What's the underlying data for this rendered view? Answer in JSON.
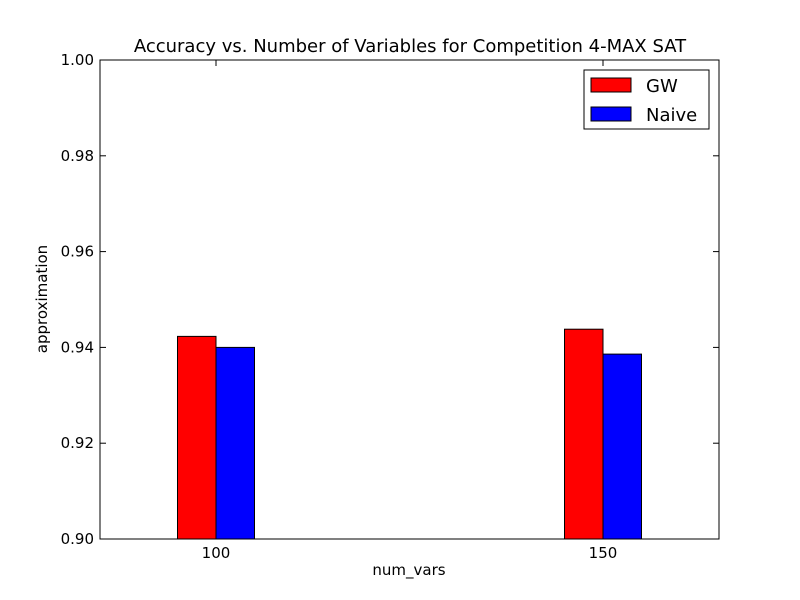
{
  "chart_data": {
    "type": "bar",
    "title": "Accuracy vs. Number of Variables for Competition 4-MAX SAT",
    "xlabel": "num_vars",
    "ylabel": "approximation",
    "categories": [
      "100",
      "150"
    ],
    "series": [
      {
        "name": "GW",
        "values": [
          0.9423,
          0.9438
        ],
        "color": "#ff0000"
      },
      {
        "name": "Naive",
        "values": [
          0.94,
          0.9386
        ],
        "color": "#0000ff"
      }
    ],
    "ylim": [
      0.9,
      1.0
    ],
    "yticks": [
      "0.90",
      "0.92",
      "0.94",
      "0.96",
      "0.98",
      "1.00"
    ],
    "grid": false,
    "legend_position": "top-right"
  }
}
